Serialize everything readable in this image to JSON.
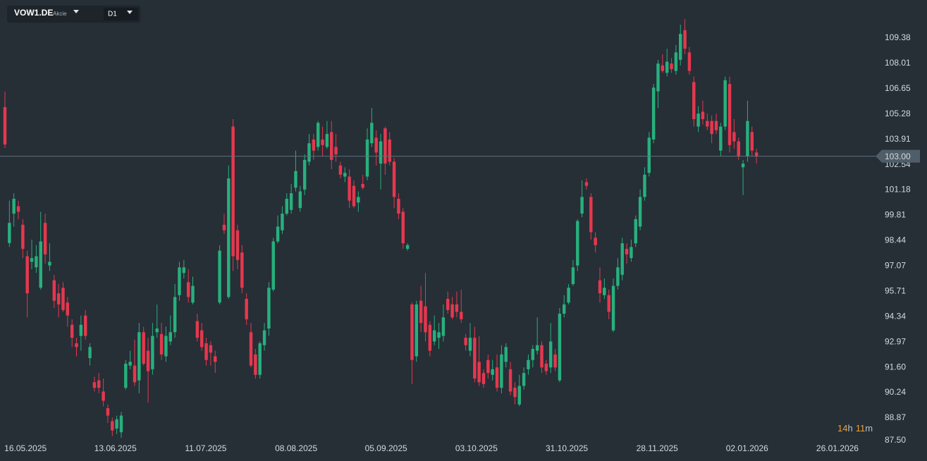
{
  "header": {
    "symbol": "VOW1.DE",
    "asset_type": "Akcie",
    "interval": "D1"
  },
  "chart_data": {
    "type": "candlestick",
    "up_color": "#27b07d",
    "down_color": "#e5384e",
    "ylim": [
      87.5,
      111.43
    ],
    "yticks": [
      109.38,
      108.01,
      106.65,
      105.28,
      103.91,
      102.54,
      101.18,
      99.81,
      98.44,
      97.07,
      95.71,
      94.34,
      92.97,
      {
        "value": 91.6,
        "label": "91.60"
      },
      90.24,
      88.87,
      {
        "value": 87.5,
        "label": "87.50"
      }
    ],
    "xlim": [
      -1.1,
      194.3
    ],
    "xticks": [
      {
        "value": 4.6,
        "label": "16.05.2025"
      },
      {
        "value": 24.7,
        "label": "13.06.2025"
      },
      {
        "value": 44.9,
        "label": "11.07.2025"
      },
      {
        "value": 65.1,
        "label": "08.08.2025"
      },
      {
        "value": 85.2,
        "label": "05.09.2025"
      },
      {
        "value": 105.4,
        "label": "03.10.2025"
      },
      {
        "value": 125.6,
        "label": "31.10.2025"
      },
      {
        "value": 145.8,
        "label": "28.11.2025"
      },
      {
        "value": 165.9,
        "label": "02.01.2026"
      },
      {
        "value": 186.1,
        "label": "26.01.2026"
      }
    ],
    "last_price": {
      "value": 103,
      "label": "103.00"
    },
    "countdown": [
      "14",
      "h",
      "11",
      "m"
    ],
    "open": [
      105.65,
      98.31,
      99.9,
      100.3,
      99.3,
      97.6,
      97.3,
      97.0,
      95.9,
      99.4,
      97.1,
      96.3,
      95.6,
      95.9,
      95.1,
      93.9,
      92.9,
      93.3,
      94.4,
      92.1,
      90.8,
      90.9,
      90.3,
      89.4,
      88.7,
      88.3,
      88.1,
      90.5,
      91.7,
      91.7,
      90.9,
      93.5,
      92.5,
      91.5,
      93.5,
      93.4,
      92.2,
      93.0,
      93.5,
      95.5,
      96.7,
      96.2,
      95.1,
      94.1,
      93.6,
      92.9,
      92.8,
      92.2,
      95.1,
      99.3,
      95.4,
      104.6,
      99.0,
      97.8,
      95.3,
      93.5,
      92.3,
      91.2,
      92.8,
      93.7,
      95.8,
      98.4,
      99.0,
      99.9,
      100.1,
      101.3,
      100.2,
      101.2,
      102.7,
      103.9,
      103.5,
      103.9,
      103.5,
      104.3,
      103.5,
      102.5,
      101.9,
      101.9,
      101.4,
      100.5,
      101.5,
      101.9,
      103.7,
      104.0,
      102.6,
      104.5,
      103.9,
      102.7,
      100.7,
      100.0,
      98.0,
      95.0,
      92.2,
      95.2,
      94.9,
      93.9,
      93.0,
      93.2,
      93.3,
      95.3,
      95.0,
      95.0,
      94.6,
      93.2,
      92.5,
      93.2,
      91.9,
      91.3,
      92.0,
      91.2,
      91.6,
      90.5,
      91.9,
      91.5,
      90.5,
      89.6,
      90.6,
      91.5,
      92.0,
      92.5,
      92.8,
      91.8,
      91.6,
      92.3,
      90.9,
      94.5,
      95.1,
      96.1,
      97.1,
      99.9,
      101.6,
      100.8,
      98.6,
      96.3,
      95.5,
      95.5,
      93.6,
      96.0,
      96.6,
      98.0,
      97.5,
      98.3,
      99.2,
      100.8,
      102.1,
      103.9,
      106.5,
      107.9,
      107.5,
      108.0,
      107.6,
      108.2,
      109.8,
      108.6,
      107.0,
      104.6,
      105.4,
      104.9,
      104.9,
      104.9,
      103.3,
      104.6,
      106.9,
      104.3,
      103.8,
      102.4,
      103.0,
      104.3,
      103.2
    ],
    "high": [
      106.49,
      100.6,
      101.0,
      100.6,
      99.6,
      97.9,
      98.5,
      98.2,
      100.0,
      99.9,
      98.3,
      96.6,
      96.1,
      96.2,
      95.4,
      94.2,
      93.2,
      94.4,
      94.7,
      92.9,
      91.1,
      91.3,
      91.0,
      89.6,
      88.9,
      89.0,
      89.2,
      92.0,
      92.5,
      93.1,
      94.0,
      93.8,
      93.2,
      94.0,
      95.0,
      94.0,
      93.8,
      94.4,
      96.1,
      97.3,
      97.4,
      96.9,
      96.5,
      94.5,
      94.0,
      93.2,
      93.0,
      92.5,
      98.2,
      99.9,
      102.5,
      105.0,
      99.3,
      98.2,
      95.6,
      94.0,
      92.6,
      93.0,
      94.0,
      96.2,
      98.6,
      99.8,
      100.3,
      101.0,
      101.5,
      103.3,
      101.4,
      103.1,
      104.2,
      104.2,
      104.9,
      104.6,
      104.9,
      104.9,
      104.2,
      102.7,
      102.4,
      102.3,
      101.7,
      101.1,
      102.0,
      104.5,
      105.6,
      104.4,
      104.2,
      104.6,
      104.3,
      102.9,
      101.0,
      100.2,
      98.3,
      95.1,
      95.2,
      96.0,
      96.7,
      94.1,
      94.4,
      94.0,
      95.0,
      95.7,
      95.4,
      95.7,
      95.8,
      93.4,
      94.0,
      93.8,
      93.3,
      91.5,
      92.3,
      92.0,
      92.3,
      92.8,
      92.9,
      91.9,
      90.8,
      91.2,
      91.6,
      92.3,
      92.8,
      94.3,
      93.0,
      92.0,
      94.0,
      92.6,
      94.8,
      95.5,
      96.1,
      97.4,
      99.6,
      101.7,
      101.8,
      101.0,
      98.9,
      97.0,
      96.4,
      95.8,
      96.4,
      97.5,
      98.6,
      98.3,
      98.5,
      99.8,
      101.2,
      102.4,
      104.3,
      106.9,
      108.2,
      108.5,
      108.8,
      108.3,
      109.0,
      110.1,
      110.4,
      108.9,
      107.3,
      105.7,
      106.0,
      105.3,
      105.2,
      105.3,
      104.8,
      107.3,
      107.3,
      105.0,
      104.0,
      102.8,
      106.0,
      104.6,
      103.4
    ],
    "low": [
      103.44,
      98.1,
      99.2,
      99.6,
      97.5,
      94.3,
      96.9,
      96.7,
      95.8,
      97.2,
      96.8,
      94.8,
      94.3,
      94.6,
      93.8,
      92.7,
      92.2,
      92.5,
      93.1,
      91.7,
      90.3,
      90.2,
      89.5,
      88.6,
      87.9,
      88.0,
      87.8,
      90.4,
      91.5,
      90.6,
      90.2,
      91.7,
      89.7,
      91.2,
      93.2,
      92.0,
      91.9,
      92.8,
      93.2,
      95.2,
      96.4,
      95.1,
      95.0,
      93.0,
      92.5,
      91.7,
      91.7,
      91.3,
      95.0,
      98.8,
      95.3,
      96.8,
      96.9,
      95.6,
      93.9,
      91.6,
      91.0,
      91.0,
      92.5,
      93.3,
      95.7,
      98.3,
      98.8,
      99.8,
      99.9,
      101.1,
      100.0,
      100.9,
      102.5,
      102.8,
      103.3,
      103.0,
      103.4,
      102.3,
      102.7,
      101.8,
      101.6,
      100.2,
      100.2,
      100.0,
      101.2,
      101.7,
      103.5,
      102.5,
      101.2,
      102.0,
      102.5,
      100.2,
      99.6,
      98.0,
      97.9,
      90.7,
      91.9,
      93.5,
      93.0,
      92.2,
      92.8,
      92.6,
      93.0,
      94.5,
      94.2,
      94.3,
      94.0,
      92.5,
      92.2,
      90.8,
      90.6,
      90.5,
      91.0,
      90.9,
      90.3,
      90.2,
      91.6,
      90.1,
      89.6,
      89.5,
      90.4,
      91.2,
      91.6,
      92.3,
      91.3,
      91.2,
      91.3,
      91.4,
      90.8,
      94.3,
      95.0,
      96.0,
      96.8,
      99.7,
      101.2,
      98.5,
      97.8,
      95.1,
      95.3,
      94.2,
      93.5,
      95.8,
      96.3,
      97.2,
      97.3,
      98.1,
      99.0,
      100.6,
      101.9,
      103.7,
      105.6,
      107.5,
      107.3,
      107.5,
      107.4,
      107.9,
      108.5,
      107.4,
      104.6,
      104.3,
      104.7,
      104.4,
      103.7,
      104.2,
      103.0,
      104.4,
      103.2,
      103.4,
      102.8,
      100.9,
      102.7,
      103.0,
      102.6
    ],
    "close": [
      103.63,
      99.4,
      100.7,
      100.0,
      98.0,
      95.6,
      97.5,
      97.6,
      98.4,
      97.7,
      97.3,
      95.2,
      95.0,
      94.7,
      94.4,
      93.2,
      92.7,
      93.9,
      93.3,
      92.7,
      90.5,
      90.5,
      89.8,
      89.0,
      88.2,
      88.8,
      89.0,
      91.8,
      91.9,
      90.8,
      93.5,
      91.8,
      91.4,
      93.3,
      93.7,
      92.3,
      93.3,
      93.5,
      95.4,
      97.0,
      97.0,
      95.4,
      96.0,
      93.2,
      92.7,
      92.0,
      92.4,
      91.9,
      97.9,
      99.0,
      101.8,
      97.6,
      97.4,
      95.9,
      94.2,
      91.7,
      91.2,
      92.9,
      93.6,
      95.9,
      98.4,
      99.2,
      99.9,
      100.7,
      101.0,
      102.2,
      101.1,
      102.8,
      103.7,
      103.3,
      104.8,
      103.6,
      104.2,
      102.8,
      103.1,
      102.0,
      102.1,
      100.6,
      100.3,
      100.8,
      101.3,
      103.9,
      104.8,
      103.2,
      103.8,
      102.6,
      102.7,
      100.8,
      99.9,
      98.3,
      98.2,
      92.0,
      95.0,
      94.0,
      93.5,
      92.5,
      93.6,
      93.5,
      94.3,
      94.7,
      94.3,
      94.6,
      94.2,
      92.8,
      93.2,
      91.0,
      90.8,
      90.7,
      91.3,
      91.5,
      90.5,
      92.3,
      92.7,
      90.3,
      90.0,
      90.6,
      91.3,
      92.0,
      92.6,
      92.8,
      91.6,
      91.4,
      93.0,
      91.6,
      94.5,
      95.0,
      95.9,
      97.0,
      99.5,
      100.8,
      101.4,
      98.9,
      98.2,
      95.6,
      95.9,
      94.6,
      96.0,
      97.0,
      98.3,
      97.7,
      98.1,
      99.6,
      100.8,
      102.0,
      104.0,
      106.7,
      108.0,
      107.6,
      108.1,
      107.7,
      108.6,
      109.6,
      108.8,
      107.6,
      105.0,
      105.3,
      105.0,
      104.6,
      104.2,
      104.4,
      104.6,
      107.1,
      103.6,
      103.8,
      103.0,
      102.6,
      104.9,
      103.3,
      103.0
    ]
  }
}
